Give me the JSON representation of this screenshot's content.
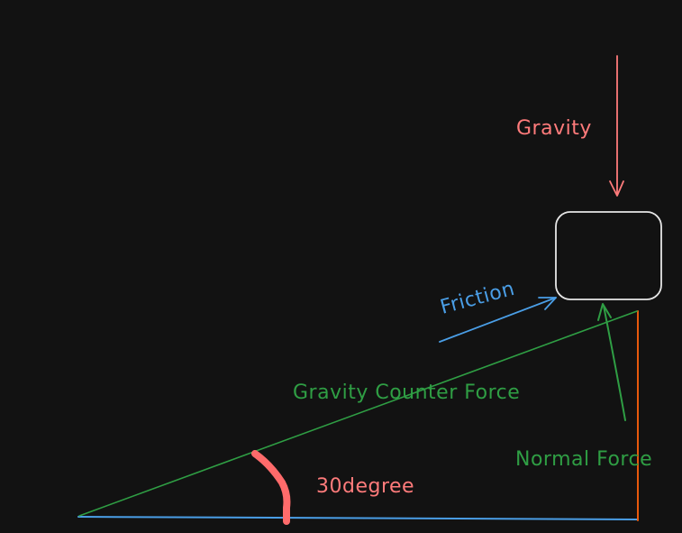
{
  "labels": {
    "gravity": "Gravity",
    "friction": "Friction",
    "gravity_counter_force": "Gravity Counter Force",
    "normal_force": "Normal Force",
    "angle": "30degree"
  },
  "colors": {
    "background": "#121212",
    "gravity": "#ff7b7b",
    "friction": "#4a9ee6",
    "green": "#2f9e44",
    "box_stroke": "#e6e6e6",
    "vertical_side": "#e8590c",
    "angle_mark": "#ff6b6b"
  },
  "icons": {
    "gravity": "down-arrow",
    "friction": "up-right-arrow",
    "normal_force": "up-arrow",
    "block": "rounded-square"
  }
}
